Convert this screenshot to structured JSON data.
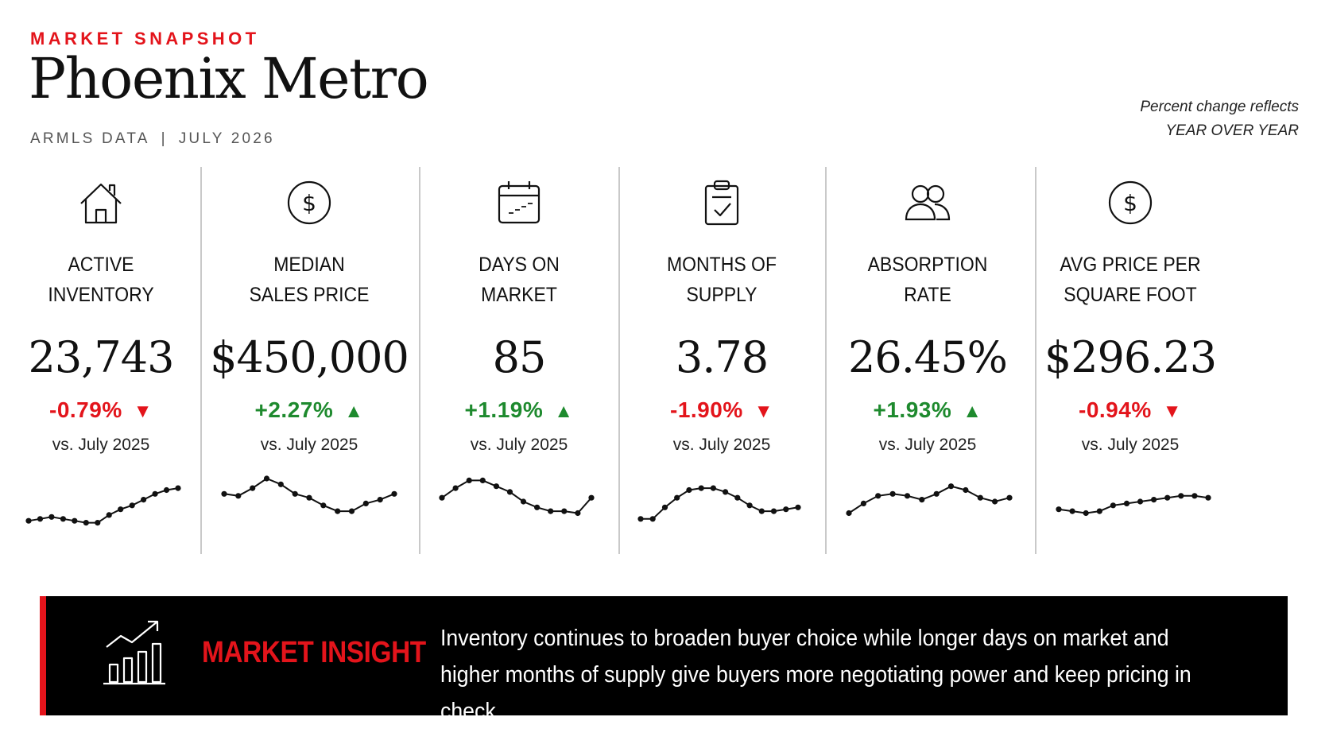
{
  "header": {
    "eyebrow": "MARKET SNAPSHOT",
    "title": "Phoenix Metro",
    "source": "ARMLS DATA",
    "separator": "|",
    "period": "JULY 2026",
    "note_line1": "Percent change reflects",
    "note_line2": "YEAR OVER YEAR"
  },
  "colors": {
    "accent_red": "#e3141b",
    "positive_green": "#1e8a2e",
    "insight_background": "#000000"
  },
  "metrics": [
    {
      "icon": "house-icon",
      "label_line1": "ACTIVE",
      "label_line2": "INVENTORY",
      "value": "23,743",
      "change": "-0.79%",
      "direction": "down",
      "arrow": "▼",
      "comparison": "vs. July 2025",
      "trend": [
        30,
        31,
        32,
        31,
        30,
        29,
        29,
        33,
        36,
        38,
        41,
        44,
        46,
        47
      ]
    },
    {
      "icon": "dollar-circle-icon",
      "label_line1": "MEDIAN",
      "label_line2": "SALES PRICE",
      "value": "$450,000",
      "change": "+2.27%",
      "direction": "up",
      "arrow": "▲",
      "comparison": "vs. July 2025",
      "trend": [
        44,
        43,
        47,
        52,
        49,
        44,
        42,
        38,
        35,
        35,
        39,
        41,
        44
      ]
    },
    {
      "icon": "calendar-icon",
      "label_line1": "DAYS ON",
      "label_line2": "MARKET",
      "value": "85",
      "change": "+1.19%",
      "direction": "up",
      "arrow": "▲",
      "comparison": "vs. July 2025",
      "trend": [
        42,
        47,
        51,
        51,
        48,
        45,
        40,
        37,
        35,
        35,
        34,
        42
      ]
    },
    {
      "icon": "clipboard-check-icon",
      "label_line1": "MONTHS OF",
      "label_line2": "SUPPLY",
      "value": "3.78",
      "change": "-1.90%",
      "direction": "down",
      "arrow": "▼",
      "comparison": "vs. July 2025",
      "trend": [
        31,
        31,
        37,
        42,
        46,
        47,
        47,
        45,
        42,
        38,
        35,
        35,
        36,
        37
      ]
    },
    {
      "icon": "people-icon",
      "label_line1": "ABSORPTION",
      "label_line2": "RATE",
      "value": "26.45%",
      "change": "+1.93%",
      "direction": "up",
      "arrow": "▲",
      "comparison": "vs. July 2025",
      "trend": [
        34,
        39,
        43,
        44,
        43,
        41,
        44,
        48,
        46,
        42,
        40,
        42
      ]
    },
    {
      "icon": "dollar-circle-icon",
      "label_line1": "AVG PRICE PER",
      "label_line2": "SQUARE FOOT",
      "value": "$296.23",
      "change": "-0.94%",
      "direction": "down",
      "arrow": "▼",
      "comparison": "vs. July 2025",
      "trend": [
        36,
        35,
        34,
        35,
        38,
        39,
        40,
        41,
        42,
        43,
        43,
        42
      ]
    }
  ],
  "insight": {
    "icon": "growth-chart-icon",
    "heading": "MARKET INSIGHT",
    "text_line1": "Inventory continues to broaden buyer choice while longer days on market and",
    "text_line2": "higher months of supply give buyers more negotiating power and keep pricing in check."
  }
}
